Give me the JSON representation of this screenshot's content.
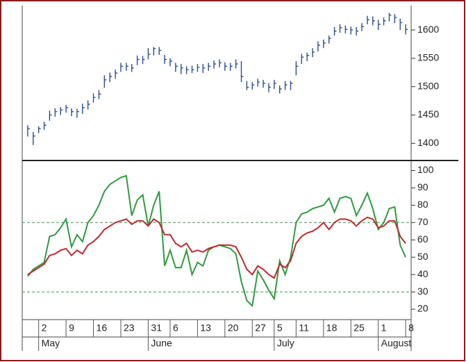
{
  "chart_data": [
    {
      "type": "ohlc",
      "x": [
        1,
        2,
        3,
        4,
        5,
        6,
        7,
        8,
        9,
        10,
        11,
        12,
        13,
        14,
        15,
        16,
        17,
        18,
        19,
        20,
        21,
        22,
        23,
        24,
        25,
        26,
        27,
        28,
        29,
        30,
        31,
        32,
        33,
        34,
        35,
        36,
        37,
        38,
        39,
        40,
        41,
        42,
        43,
        44,
        45,
        46,
        47,
        48,
        49,
        50,
        51,
        52,
        53,
        54,
        55,
        56,
        57,
        58,
        59,
        60,
        61,
        62,
        63,
        64,
        65,
        66,
        67,
        68,
        69,
        70
      ],
      "high": [
        1432,
        1420,
        1430,
        1438,
        1458,
        1462,
        1464,
        1468,
        1462,
        1461,
        1470,
        1476,
        1488,
        1494,
        1520,
        1525,
        1530,
        1542,
        1542,
        1540,
        1555,
        1554,
        1568,
        1570,
        1570,
        1556,
        1550,
        1542,
        1540,
        1536,
        1537,
        1540,
        1540,
        1542,
        1546,
        1548,
        1543,
        1542,
        1548,
        1545,
        1510,
        1508,
        1514,
        1512,
        1506,
        1512,
        1502,
        1510,
        1510,
        1545,
        1558,
        1560,
        1568,
        1580,
        1583,
        1590,
        1605,
        1610,
        1608,
        1606,
        1605,
        1612,
        1625,
        1624,
        1618,
        1622,
        1630,
        1628,
        1620,
        1610
      ],
      "low": [
        1412,
        1397,
        1418,
        1424,
        1440,
        1447,
        1450,
        1454,
        1448,
        1445,
        1452,
        1460,
        1472,
        1478,
        1498,
        1508,
        1514,
        1526,
        1528,
        1526,
        1538,
        1540,
        1548,
        1555,
        1556,
        1540,
        1536,
        1526,
        1522,
        1522,
        1524,
        1526,
        1524,
        1528,
        1532,
        1534,
        1528,
        1528,
        1532,
        1508,
        1494,
        1495,
        1500,
        1498,
        1490,
        1496,
        1488,
        1494,
        1494,
        1520,
        1540,
        1545,
        1552,
        1562,
        1568,
        1576,
        1590,
        1595,
        1594,
        1592,
        1590,
        1598,
        1610,
        1608,
        1600,
        1608,
        1615,
        1612,
        1600,
        1592
      ],
      "close": [
        1426,
        1413,
        1426,
        1432,
        1450,
        1456,
        1459,
        1463,
        1456,
        1456,
        1463,
        1469,
        1481,
        1487,
        1512,
        1518,
        1524,
        1536,
        1536,
        1533,
        1548,
        1548,
        1557,
        1567,
        1564,
        1548,
        1545,
        1536,
        1533,
        1530,
        1530,
        1534,
        1533,
        1536,
        1540,
        1542,
        1536,
        1536,
        1540,
        1518,
        1499,
        1503,
        1508,
        1506,
        1499,
        1506,
        1496,
        1503,
        1506,
        1536,
        1552,
        1555,
        1561,
        1573,
        1577,
        1585,
        1598,
        1604,
        1601,
        1600,
        1598,
        1606,
        1618,
        1616,
        1610,
        1616,
        1626,
        1622,
        1613,
        1601
      ],
      "color": "#2b4d8c",
      "xlim": [
        0,
        71
      ],
      "ylim": [
        1371,
        1643
      ],
      "yticks": [
        1400,
        1450,
        1500,
        1550,
        1600
      ]
    },
    {
      "type": "line",
      "x": [
        1,
        2,
        3,
        4,
        5,
        6,
        7,
        8,
        9,
        10,
        11,
        12,
        13,
        14,
        15,
        16,
        17,
        18,
        19,
        20,
        21,
        22,
        23,
        24,
        25,
        26,
        27,
        28,
        29,
        30,
        31,
        32,
        33,
        34,
        35,
        36,
        37,
        38,
        39,
        40,
        41,
        42,
        43,
        44,
        45,
        46,
        47,
        48,
        49,
        50,
        51,
        52,
        53,
        54,
        55,
        56,
        57,
        58,
        59,
        60,
        61,
        62,
        63,
        64,
        65,
        66,
        67,
        68,
        69,
        70
      ],
      "series": [
        {
          "color": "#2e9a3e",
          "values": [
            39,
            43,
            45,
            47,
            62,
            63,
            67,
            72,
            56,
            63,
            59,
            70,
            74,
            80,
            88,
            92,
            94,
            96,
            97,
            74,
            83,
            86,
            68,
            80,
            88,
            45,
            54,
            44,
            44,
            54,
            40,
            47,
            45,
            54,
            56,
            57,
            56,
            55,
            52,
            36,
            25,
            22,
            42,
            37,
            31,
            26,
            48,
            40,
            50,
            70,
            75,
            76,
            78,
            79,
            80,
            84,
            76,
            84,
            85,
            84,
            74,
            80,
            87,
            78,
            66,
            70,
            78,
            79,
            57,
            50
          ]
        },
        {
          "color": "#c0282c",
          "values": [
            40,
            42,
            44,
            46,
            51,
            52,
            54,
            55,
            51,
            54,
            52,
            57,
            59,
            62,
            66,
            68,
            70,
            71,
            72,
            69,
            71,
            71,
            68,
            72,
            70,
            63,
            63,
            58,
            56,
            58,
            53,
            54,
            53,
            55,
            56,
            57,
            57,
            57,
            56,
            50,
            43,
            40,
            45,
            43,
            40,
            38,
            46,
            44,
            48,
            58,
            62,
            64,
            65,
            67,
            70,
            66,
            70,
            72,
            72,
            71,
            68,
            71,
            73,
            72,
            67,
            68,
            71,
            71,
            62,
            58
          ]
        }
      ],
      "xlim": [
        0,
        71
      ],
      "ylim": [
        14,
        105
      ],
      "yticks": [
        20,
        30,
        40,
        50,
        60,
        70,
        80,
        90,
        100
      ],
      "reference_lines": [
        70,
        30
      ],
      "reference_color": "#2e9a3e",
      "xticks": [
        {
          "value": 3,
          "label": "2"
        },
        {
          "value": 8,
          "label": "9"
        },
        {
          "value": 13,
          "label": "16"
        },
        {
          "value": 18,
          "label": "23"
        },
        {
          "value": 23,
          "label": "31"
        },
        {
          "value": 27,
          "label": "6"
        },
        {
          "value": 32,
          "label": "13"
        },
        {
          "value": 37,
          "label": "20"
        },
        {
          "value": 42,
          "label": "27"
        },
        {
          "value": 46,
          "label": "5"
        },
        {
          "value": 50,
          "label": "11"
        },
        {
          "value": 55,
          "label": "18"
        },
        {
          "value": 60,
          "label": "25"
        },
        {
          "value": 65,
          "label": "1"
        },
        {
          "value": 70,
          "label": "8"
        }
      ],
      "month_labels": [
        {
          "value": 3,
          "label": "May"
        },
        {
          "value": 23,
          "label": "June"
        },
        {
          "value": 46,
          "label": "July"
        },
        {
          "value": 65,
          "label": "August"
        }
      ]
    }
  ]
}
